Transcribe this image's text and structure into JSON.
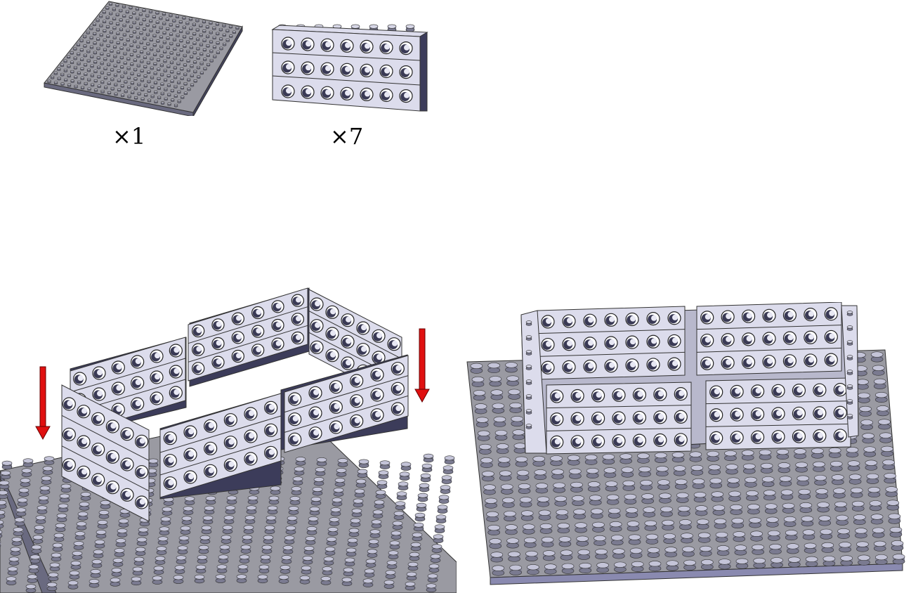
{
  "parts": [
    {
      "name": "baseplate",
      "quantity_label": "×1"
    },
    {
      "name": "technic-brick-1x8-3high",
      "quantity_label": "×7"
    }
  ],
  "steps": [
    {
      "name": "assembly-step",
      "arrows": 2
    },
    {
      "name": "completed-model"
    }
  ],
  "colors": {
    "part_light": "#dcdcec",
    "part_mid": "#b8b8cc",
    "part_dark": "#3c3c5a",
    "baseplate": "#9a9aa2",
    "arrow": "#e01010"
  }
}
